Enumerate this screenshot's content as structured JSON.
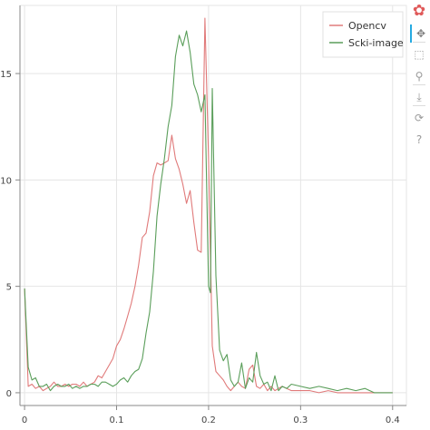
{
  "chart_data": {
    "type": "line",
    "title": "",
    "xlabel": "",
    "ylabel": "",
    "xlim": [
      -0.005,
      0.415
    ],
    "ylim": [
      -0.6,
      18.2
    ],
    "xticks": [
      "0",
      "0.1",
      "0.2",
      "0.3",
      "0.4"
    ],
    "yticks": [
      "0",
      "5",
      "10",
      "15"
    ],
    "grid": true,
    "legend_position": "top-right",
    "series": [
      {
        "name": "Opencv",
        "color": "#e07a7a",
        "x": [
          0,
          0.004,
          0.008,
          0.012,
          0.016,
          0.02,
          0.024,
          0.028,
          0.032,
          0.036,
          0.04,
          0.044,
          0.048,
          0.052,
          0.056,
          0.06,
          0.064,
          0.068,
          0.072,
          0.076,
          0.08,
          0.084,
          0.088,
          0.092,
          0.096,
          0.1,
          0.104,
          0.108,
          0.112,
          0.116,
          0.12,
          0.124,
          0.128,
          0.132,
          0.136,
          0.14,
          0.144,
          0.148,
          0.152,
          0.156,
          0.16,
          0.164,
          0.168,
          0.172,
          0.176,
          0.18,
          0.184,
          0.188,
          0.192,
          0.196,
          0.2,
          0.202,
          0.204,
          0.208,
          0.212,
          0.216,
          0.22,
          0.224,
          0.228,
          0.232,
          0.236,
          0.24,
          0.244,
          0.248,
          0.252,
          0.256,
          0.26,
          0.264,
          0.268,
          0.272,
          0.276,
          0.28,
          0.285,
          0.29,
          0.3,
          0.31,
          0.32,
          0.33,
          0.34,
          0.35,
          0.36,
          0.37,
          0.38,
          0.39,
          0.4
        ],
        "y": [
          4.9,
          0.3,
          0.4,
          0.2,
          0.3,
          0.1,
          0.2,
          0.3,
          0.5,
          0.3,
          0.3,
          0.4,
          0.3,
          0.4,
          0.4,
          0.3,
          0.5,
          0.3,
          0.4,
          0.5,
          0.8,
          0.7,
          1.0,
          1.3,
          1.6,
          2.2,
          2.5,
          3.0,
          3.6,
          4.2,
          5.0,
          6.0,
          7.3,
          7.5,
          8.5,
          10.2,
          10.8,
          10.7,
          10.8,
          10.9,
          12.1,
          11.0,
          10.5,
          9.8,
          8.9,
          9.5,
          8.0,
          6.7,
          6.6,
          17.6,
          11.0,
          6.5,
          2.2,
          1.0,
          0.8,
          0.6,
          0.3,
          0.1,
          0.3,
          0.5,
          0.3,
          0.2,
          1.1,
          1.3,
          0.3,
          0.2,
          0.4,
          0.1,
          0.3,
          0.1,
          0.2,
          0.3,
          0.2,
          0.1,
          0.1,
          0.1,
          0.0,
          0.1,
          0.0,
          0.0,
          0.0,
          0.0,
          0.0,
          0.0,
          0.0
        ]
      },
      {
        "name": "Scki-image",
        "color": "#5a9e5a",
        "x": [
          0,
          0.004,
          0.008,
          0.012,
          0.016,
          0.02,
          0.024,
          0.028,
          0.032,
          0.036,
          0.04,
          0.044,
          0.048,
          0.052,
          0.056,
          0.06,
          0.064,
          0.068,
          0.072,
          0.076,
          0.08,
          0.084,
          0.088,
          0.092,
          0.096,
          0.1,
          0.104,
          0.108,
          0.112,
          0.116,
          0.12,
          0.124,
          0.128,
          0.132,
          0.136,
          0.14,
          0.144,
          0.148,
          0.152,
          0.156,
          0.16,
          0.164,
          0.168,
          0.172,
          0.176,
          0.18,
          0.184,
          0.188,
          0.192,
          0.196,
          0.2,
          0.202,
          0.204,
          0.208,
          0.212,
          0.216,
          0.22,
          0.224,
          0.228,
          0.232,
          0.236,
          0.24,
          0.244,
          0.248,
          0.252,
          0.256,
          0.26,
          0.264,
          0.268,
          0.272,
          0.276,
          0.28,
          0.285,
          0.29,
          0.3,
          0.31,
          0.32,
          0.33,
          0.34,
          0.35,
          0.36,
          0.37,
          0.38,
          0.39,
          0.4
        ],
        "y": [
          4.9,
          1.2,
          0.6,
          0.7,
          0.3,
          0.3,
          0.4,
          0.1,
          0.3,
          0.4,
          0.3,
          0.3,
          0.4,
          0.2,
          0.3,
          0.2,
          0.3,
          0.3,
          0.4,
          0.4,
          0.3,
          0.5,
          0.5,
          0.4,
          0.3,
          0.4,
          0.6,
          0.7,
          0.5,
          0.8,
          1.0,
          1.1,
          1.6,
          2.8,
          3.8,
          5.7,
          8.3,
          9.8,
          11.0,
          12.5,
          13.5,
          15.8,
          16.8,
          16.3,
          17.0,
          16.0,
          14.5,
          14.0,
          13.2,
          14.0,
          5.0,
          4.7,
          14.3,
          5.5,
          2.0,
          1.5,
          1.8,
          0.6,
          0.3,
          0.5,
          1.4,
          0.2,
          0.7,
          0.5,
          1.9,
          0.8,
          0.4,
          0.5,
          0.1,
          0.8,
          0.1,
          0.3,
          0.2,
          0.4,
          0.3,
          0.2,
          0.3,
          0.2,
          0.1,
          0.2,
          0.1,
          0.2,
          0.0,
          0.0,
          0.0
        ]
      }
    ]
  },
  "toolbar": {
    "tools": [
      {
        "name": "bokeh-logo-icon",
        "glyph": "✿",
        "color": "#e05a5a"
      },
      {
        "name": "pan-icon",
        "glyph": "✥",
        "color": "#7f7f7f"
      },
      {
        "name": "box-zoom-icon",
        "glyph": "⬚",
        "color": "#9a9a9a"
      },
      {
        "name": "wheel-zoom-icon",
        "glyph": "⚲",
        "color": "#9a9a9a"
      },
      {
        "name": "save-icon",
        "glyph": "⤓",
        "color": "#9a9a9a"
      },
      {
        "name": "reset-icon",
        "glyph": "⟳",
        "color": "#9a9a9a"
      },
      {
        "name": "help-icon",
        "glyph": "?",
        "color": "#9a9a9a"
      }
    ],
    "accent": "#26aae1"
  }
}
